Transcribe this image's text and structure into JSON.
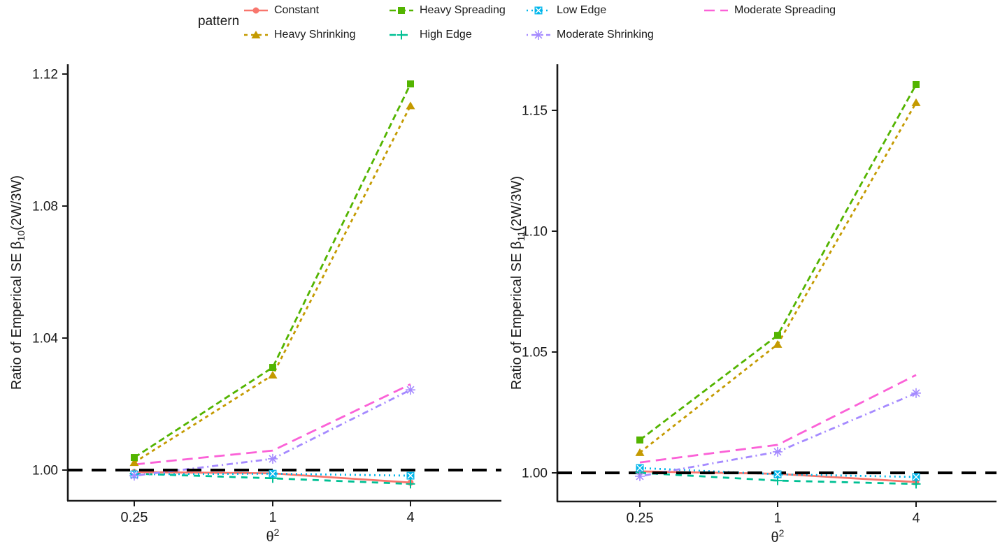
{
  "legend": {
    "title": "pattern",
    "items": [
      {
        "id": "constant",
        "label": "Constant",
        "color": "#F8766D",
        "dash": "solid",
        "marker": "circle"
      },
      {
        "id": "heavy-shrinking",
        "label": "Heavy Shrinking",
        "color": "#C49A00",
        "dash": "dash-short",
        "marker": "triangle"
      },
      {
        "id": "heavy-spreading",
        "label": "Heavy Spreading",
        "color": "#53B400",
        "dash": "dash",
        "marker": "square"
      },
      {
        "id": "high-edge",
        "label": "High Edge",
        "color": "#00C094",
        "dash": "dash-medium",
        "marker": "plus"
      },
      {
        "id": "low-edge",
        "label": "Low Edge",
        "color": "#00B6EB",
        "dash": "dotted",
        "marker": "square-x"
      },
      {
        "id": "moderate-shrinking",
        "label": "Moderate Shrinking",
        "color": "#A58AFF",
        "dash": "dash-dot",
        "marker": "asterisk"
      },
      {
        "id": "moderate-spreading",
        "label": "Moderate Spreading",
        "color": "#FB61D7",
        "dash": "long-dash",
        "marker": "none"
      }
    ],
    "columns": [
      [
        "constant",
        "heavy-shrinking"
      ],
      [
        "heavy-spreading",
        "high-edge"
      ],
      [
        "low-edge",
        "moderate-shrinking"
      ],
      [
        "moderate-spreading"
      ]
    ]
  },
  "chart_data": [
    {
      "type": "line",
      "panel": "left",
      "x": [
        0.25,
        1,
        4
      ],
      "x_scale": "log",
      "x_tick_labels": [
        "0.25",
        "1",
        "4"
      ],
      "xlabel_base": "θ",
      "xlabel_sup": "2",
      "ylabel_prefix": "Ratio of Emperical SE β",
      "ylabel_sub": "10",
      "ylabel_suffix": "(2W/3W)",
      "yticks": [
        1.0,
        1.04,
        1.08,
        1.12
      ],
      "ytick_labels": [
        "1.00",
        "1.04",
        "1.08",
        "1.12"
      ],
      "ylim": [
        0.99,
        1.123
      ],
      "reference_line": 1.0,
      "grid": false,
      "legend_position": "top",
      "series": [
        {
          "name": "Constant",
          "values": [
            0.9994,
            0.999,
            0.9962
          ]
        },
        {
          "name": "Heavy Shrinking",
          "values": [
            1.0023,
            1.0288,
            1.1104
          ]
        },
        {
          "name": "Heavy Spreading",
          "values": [
            1.0038,
            1.0311,
            1.117
          ]
        },
        {
          "name": "High Edge",
          "values": [
            0.9989,
            0.9975,
            0.9958
          ]
        },
        {
          "name": "Low Edge",
          "values": [
            0.9987,
            0.9989,
            0.9983
          ]
        },
        {
          "name": "Moderate Shrinking",
          "values": [
            0.9983,
            1.0034,
            1.0243
          ]
        },
        {
          "name": "Moderate Spreading",
          "values": [
            1.0017,
            1.0059,
            1.026
          ]
        }
      ]
    },
    {
      "type": "line",
      "panel": "right",
      "x": [
        0.25,
        1,
        4
      ],
      "x_scale": "log",
      "x_tick_labels": [
        "0.25",
        "1",
        "4"
      ],
      "xlabel_base": "θ",
      "xlabel_sup": "2",
      "ylabel_prefix": "Ratio of Emperical SE β",
      "ylabel_sub": "11",
      "ylabel_suffix": "(2W/3W)",
      "yticks": [
        1.0,
        1.05,
        1.1,
        1.15
      ],
      "ytick_labels": [
        "1.00",
        "1.05",
        "1.10",
        "1.15"
      ],
      "ylim": [
        0.988,
        1.169
      ],
      "reference_line": 1.0,
      "grid": false,
      "legend_position": "top",
      "series": [
        {
          "name": "Constant",
          "values": [
            1.0006,
            0.9996,
            0.9962
          ]
        },
        {
          "name": "Heavy Shrinking",
          "values": [
            1.0084,
            1.0532,
            1.1532
          ]
        },
        {
          "name": "Heavy Spreading",
          "values": [
            1.0136,
            1.0569,
            1.1607
          ]
        },
        {
          "name": "High Edge",
          "values": [
            1.0,
            0.9968,
            0.9954
          ]
        },
        {
          "name": "Low Edge",
          "values": [
            1.002,
            0.9994,
            0.9983
          ]
        },
        {
          "name": "Moderate Shrinking",
          "values": [
            0.9986,
            1.0087,
            1.033
          ]
        },
        {
          "name": "Moderate Spreading",
          "values": [
            1.0043,
            1.0116,
            1.0405
          ]
        }
      ]
    }
  ]
}
